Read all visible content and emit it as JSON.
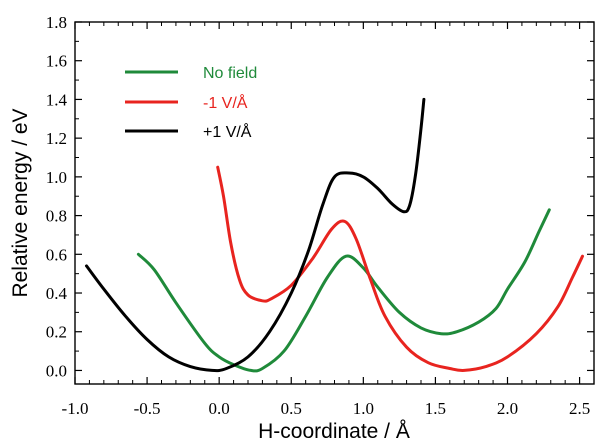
{
  "chart_data": {
    "type": "line",
    "title": "",
    "xlabel": "H-coordinate / Å",
    "ylabel": "Relative energy / eV",
    "xlim": [
      -1.0,
      2.6
    ],
    "ylim": [
      -0.07,
      1.8
    ],
    "x_ticks": [
      -1.0,
      -0.5,
      0.0,
      0.5,
      1.0,
      1.5,
      2.0,
      2.5
    ],
    "x_tick_labels": [
      "-1.0",
      "-0.5",
      "0.0",
      "0.5",
      "1.0",
      "1.5",
      "2.0",
      "2.5"
    ],
    "y_ticks": [
      0.0,
      0.2,
      0.4,
      0.6,
      0.8,
      1.0,
      1.2,
      1.4,
      1.6,
      1.8
    ],
    "y_tick_labels": [
      "0.0",
      "0.2",
      "0.4",
      "0.6",
      "0.8",
      "1.0",
      "1.2",
      "1.4",
      "1.6",
      "1.8"
    ],
    "grid": false,
    "legend_position": "top-left",
    "series": [
      {
        "name": "No field",
        "color": "#1f8a3a",
        "points": [
          [
            -0.56,
            0.6
          ],
          [
            -0.45,
            0.52
          ],
          [
            -0.3,
            0.35
          ],
          [
            -0.1,
            0.14
          ],
          [
            0.0,
            0.07
          ],
          [
            0.1,
            0.03
          ],
          [
            0.22,
            0.0
          ],
          [
            0.3,
            0.01
          ],
          [
            0.45,
            0.1
          ],
          [
            0.6,
            0.28
          ],
          [
            0.75,
            0.48
          ],
          [
            0.88,
            0.59
          ],
          [
            1.0,
            0.53
          ],
          [
            1.1,
            0.43
          ],
          [
            1.25,
            0.3
          ],
          [
            1.4,
            0.22
          ],
          [
            1.54,
            0.19
          ],
          [
            1.65,
            0.2
          ],
          [
            1.8,
            0.25
          ],
          [
            1.92,
            0.32
          ],
          [
            2.0,
            0.42
          ],
          [
            2.12,
            0.56
          ],
          [
            2.22,
            0.72
          ],
          [
            2.29,
            0.83
          ]
        ]
      },
      {
        "name": "-1 V/Å",
        "color": "#e8241f",
        "points": [
          [
            -0.01,
            1.05
          ],
          [
            0.03,
            0.9
          ],
          [
            0.08,
            0.66
          ],
          [
            0.14,
            0.47
          ],
          [
            0.2,
            0.39
          ],
          [
            0.3,
            0.36
          ],
          [
            0.36,
            0.37
          ],
          [
            0.5,
            0.44
          ],
          [
            0.65,
            0.58
          ],
          [
            0.78,
            0.73
          ],
          [
            0.87,
            0.77
          ],
          [
            0.95,
            0.68
          ],
          [
            1.05,
            0.47
          ],
          [
            1.15,
            0.28
          ],
          [
            1.3,
            0.12
          ],
          [
            1.45,
            0.04
          ],
          [
            1.6,
            0.01
          ],
          [
            1.7,
            0.0
          ],
          [
            1.85,
            0.02
          ],
          [
            2.0,
            0.07
          ],
          [
            2.2,
            0.19
          ],
          [
            2.35,
            0.33
          ],
          [
            2.45,
            0.48
          ],
          [
            2.52,
            0.59
          ]
        ]
      },
      {
        "name": "+1 V/Å",
        "color": "#000000",
        "points": [
          [
            -0.92,
            0.54
          ],
          [
            -0.8,
            0.42
          ],
          [
            -0.65,
            0.28
          ],
          [
            -0.5,
            0.16
          ],
          [
            -0.35,
            0.07
          ],
          [
            -0.2,
            0.02
          ],
          [
            -0.05,
            0.0
          ],
          [
            0.05,
            0.01
          ],
          [
            0.2,
            0.07
          ],
          [
            0.35,
            0.2
          ],
          [
            0.5,
            0.4
          ],
          [
            0.62,
            0.62
          ],
          [
            0.72,
            0.86
          ],
          [
            0.8,
            1.0
          ],
          [
            0.9,
            1.02
          ],
          [
            1.0,
            1.0
          ],
          [
            1.1,
            0.94
          ],
          [
            1.2,
            0.86
          ],
          [
            1.28,
            0.82
          ],
          [
            1.32,
            0.85
          ],
          [
            1.36,
            1.0
          ],
          [
            1.4,
            1.25
          ],
          [
            1.42,
            1.4
          ]
        ]
      }
    ]
  }
}
